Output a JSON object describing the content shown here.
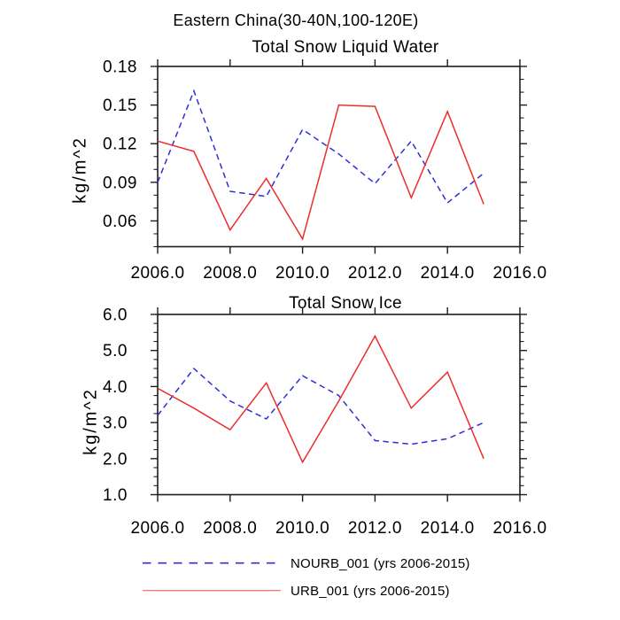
{
  "header": {
    "title": "Eastern China(30-40N,100-120E)"
  },
  "colors": {
    "nourb": "#2f2fd3",
    "urb": "#ee2c2c",
    "axis": "#1d1d1d",
    "text": "#000000"
  },
  "legend": {
    "items": [
      {
        "label": "NOURB_001 (yrs 2006-2015)",
        "color_key": "nourb",
        "line_style": "dashed"
      },
      {
        "label": "URB_001 (yrs 2006-2015)",
        "color_key": "urb",
        "line_style": "solid"
      }
    ]
  },
  "chart_data": [
    {
      "type": "line",
      "title": "Total Snow Liquid Water",
      "ylabel": "kg/m^2",
      "xlabel": "",
      "grid": false,
      "legend_position": "below-figure",
      "x": [
        2006,
        2007,
        2008,
        2009,
        2010,
        2011,
        2012,
        2013,
        2014,
        2015
      ],
      "series": [
        {
          "name": "NOURB_001",
          "color_key": "nourb",
          "line_style": "dashed",
          "values": [
            0.09,
            0.161,
            0.083,
            0.079,
            0.131,
            0.112,
            0.089,
            0.122,
            0.074,
            0.097
          ]
        },
        {
          "name": "URB_001",
          "color_key": "urb",
          "line_style": "solid",
          "values": [
            0.122,
            0.114,
            0.053,
            0.093,
            0.046,
            0.15,
            0.149,
            0.078,
            0.145,
            0.073
          ]
        }
      ],
      "xlim": [
        2006,
        2016
      ],
      "ylim": [
        0.04,
        0.18
      ],
      "xticks": {
        "values": [
          2006,
          2008,
          2010,
          2012,
          2014,
          2016
        ],
        "labels": [
          "2006.0",
          "2008.0",
          "2010.0",
          "2012.0",
          "2014.0",
          "2016.0"
        ]
      },
      "yticks": {
        "values": [
          0.06,
          0.09,
          0.12,
          0.15,
          0.18
        ],
        "labels": [
          "0.06",
          "0.09",
          "0.12",
          "0.15",
          "0.18"
        ],
        "minor_step": 0.01
      }
    },
    {
      "type": "line",
      "title": "Total Snow Ice",
      "ylabel": "kg/m^2",
      "xlabel": "",
      "grid": false,
      "legend_position": "below-figure",
      "x": [
        2006,
        2007,
        2008,
        2009,
        2010,
        2011,
        2012,
        2013,
        2014,
        2015
      ],
      "series": [
        {
          "name": "NOURB_001",
          "color_key": "nourb",
          "line_style": "dashed",
          "values": [
            3.2,
            4.5,
            3.6,
            3.1,
            4.3,
            3.75,
            2.5,
            2.4,
            2.55,
            3.0
          ]
        },
        {
          "name": "URB_001",
          "color_key": "urb",
          "line_style": "solid",
          "values": [
            3.95,
            3.4,
            2.8,
            4.1,
            1.9,
            3.6,
            5.4,
            3.4,
            4.4,
            2.0
          ]
        }
      ],
      "xlim": [
        2006,
        2016
      ],
      "ylim": [
        1.0,
        6.0
      ],
      "xticks": {
        "values": [
          2006,
          2008,
          2010,
          2012,
          2014,
          2016
        ],
        "labels": [
          "2006.0",
          "2008.0",
          "2010.0",
          "2012.0",
          "2014.0",
          "2016.0"
        ]
      },
      "yticks": {
        "values": [
          1.0,
          2.0,
          3.0,
          4.0,
          5.0,
          6.0
        ],
        "labels": [
          "1.0",
          "2.0",
          "3.0",
          "4.0",
          "5.0",
          "6.0"
        ],
        "minor_step": 0.25
      }
    }
  ]
}
